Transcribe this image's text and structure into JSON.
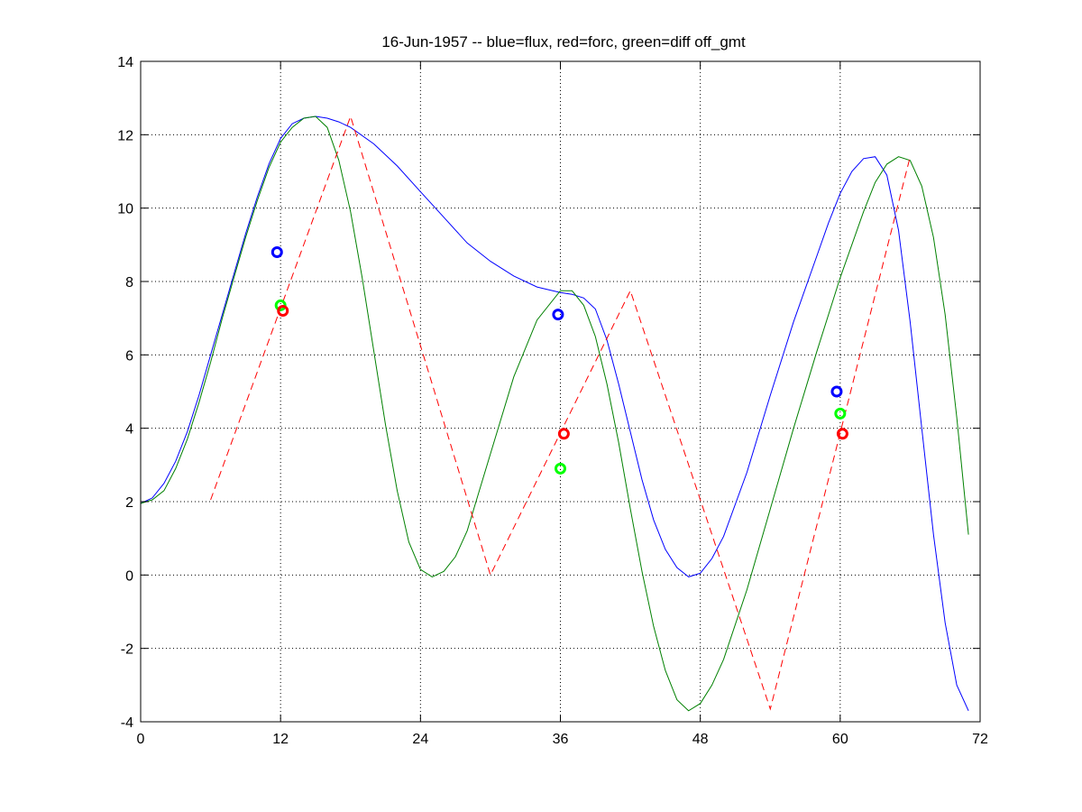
{
  "chart_data": {
    "type": "line",
    "title": "16-Jun-1957 -- blue=flux, red=forc, green=diff off_gmt",
    "xlabel": "",
    "ylabel": "",
    "xlim": [
      0,
      72
    ],
    "ylim": [
      -4,
      14
    ],
    "xticks": [
      0,
      12,
      24,
      36,
      48,
      60,
      72
    ],
    "yticks": [
      -4,
      -2,
      0,
      2,
      4,
      6,
      8,
      10,
      12,
      14
    ],
    "grid": true,
    "series": [
      {
        "color": "#0000ff",
        "style": "solid",
        "x": [
          0,
          1,
          2,
          3,
          4,
          5,
          6,
          7,
          8,
          9,
          10,
          11,
          12,
          13,
          14,
          15,
          16,
          17,
          18,
          20,
          22,
          24,
          26,
          28,
          30,
          32,
          34,
          36,
          37,
          38,
          39,
          40,
          41,
          42,
          43,
          44,
          45,
          46,
          47,
          48,
          49,
          50,
          52,
          54,
          56,
          58,
          59,
          60,
          61,
          62,
          63,
          64,
          65,
          66,
          67,
          68,
          69,
          70,
          71
        ],
        "y": [
          1.95,
          2.1,
          2.5,
          3.1,
          3.9,
          4.9,
          6.0,
          7.1,
          8.2,
          9.3,
          10.3,
          11.2,
          11.9,
          12.3,
          12.45,
          12.5,
          12.45,
          12.35,
          12.2,
          11.75,
          11.15,
          10.45,
          9.75,
          9.05,
          8.55,
          8.15,
          7.85,
          7.7,
          7.65,
          7.55,
          7.25,
          6.4,
          5.2,
          3.9,
          2.6,
          1.5,
          0.7,
          0.2,
          -0.05,
          0.05,
          0.45,
          1.05,
          2.8,
          4.9,
          6.9,
          8.7,
          9.6,
          10.4,
          11.0,
          11.35,
          11.4,
          10.9,
          9.4,
          6.9,
          4.0,
          1.1,
          -1.3,
          -3.0,
          -3.7
        ]
      },
      {
        "color": "#008000",
        "style": "solid",
        "x": [
          0,
          1,
          2,
          3,
          4,
          5,
          6,
          7,
          8,
          9,
          10,
          11,
          12,
          13,
          14,
          15,
          16,
          17,
          18,
          19,
          20,
          21,
          22,
          23,
          24,
          25,
          26,
          27,
          28,
          30,
          32,
          34,
          36,
          37,
          38,
          39,
          40,
          41,
          42,
          43,
          44,
          45,
          46,
          47,
          48,
          49,
          50,
          52,
          54,
          56,
          58,
          60,
          62,
          63,
          64,
          65,
          66,
          67,
          68,
          69,
          70,
          71
        ],
        "y": [
          1.95,
          2.05,
          2.3,
          2.9,
          3.7,
          4.7,
          5.8,
          7.0,
          8.1,
          9.2,
          10.2,
          11.1,
          11.8,
          12.2,
          12.45,
          12.5,
          12.2,
          11.3,
          9.9,
          8.1,
          6.1,
          4.1,
          2.3,
          0.9,
          0.15,
          -0.05,
          0.1,
          0.5,
          1.2,
          3.3,
          5.4,
          6.95,
          7.75,
          7.75,
          7.35,
          6.5,
          5.2,
          3.6,
          1.8,
          0.1,
          -1.4,
          -2.6,
          -3.4,
          -3.7,
          -3.5,
          -3.0,
          -2.3,
          -0.4,
          1.8,
          4.0,
          6.1,
          8.1,
          9.9,
          10.7,
          11.2,
          11.4,
          11.3,
          10.6,
          9.2,
          7.1,
          4.3,
          1.1
        ]
      },
      {
        "color": "#ff0000",
        "style": "dashed",
        "x": [
          6,
          18,
          30,
          42,
          54,
          66
        ],
        "y": [
          2.05,
          12.5,
          0.0,
          7.75,
          -3.65,
          11.4
        ]
      }
    ],
    "markers": [
      {
        "color": "#0000ff",
        "x": 11.7,
        "y": 8.8
      },
      {
        "color": "#00ff00",
        "x": 12.0,
        "y": 7.35
      },
      {
        "color": "#ff0000",
        "x": 12.2,
        "y": 7.2
      },
      {
        "color": "#0000ff",
        "x": 35.8,
        "y": 7.1
      },
      {
        "color": "#ff0000",
        "x": 36.3,
        "y": 3.85
      },
      {
        "color": "#00ff00",
        "x": 36.0,
        "y": 2.9
      },
      {
        "color": "#0000ff",
        "x": 59.7,
        "y": 5.0
      },
      {
        "color": "#00ff00",
        "x": 60.0,
        "y": 4.4
      },
      {
        "color": "#ff0000",
        "x": 60.2,
        "y": 3.85
      }
    ]
  }
}
